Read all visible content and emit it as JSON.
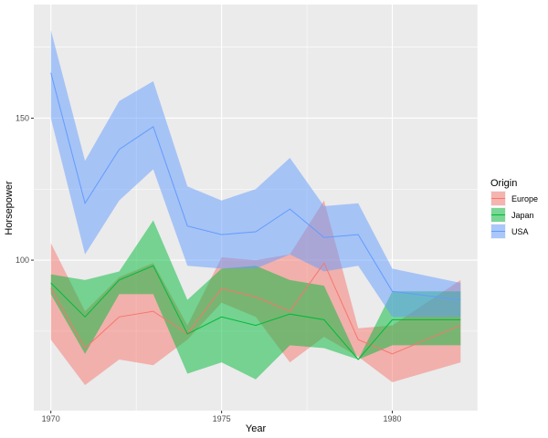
{
  "chart_data": {
    "type": "area",
    "xlabel": "Year",
    "ylabel": "Horsepower",
    "x": [
      1970,
      1971,
      1972,
      1973,
      1974,
      1975,
      1976,
      1977,
      1978,
      1979,
      1980,
      1982
    ],
    "x_ticks": [
      "1970",
      "1975",
      "1980"
    ],
    "y_ticks": [
      "100",
      "150"
    ],
    "xlim": [
      1969.5,
      1982.5
    ],
    "ylim": [
      47,
      190
    ],
    "grid": true,
    "legend_position": "right",
    "legend_title": "Origin",
    "series": [
      {
        "name": "Europe",
        "color": "#F8766D",
        "mean": [
          90,
          69,
          80,
          82,
          74,
          90,
          87,
          82,
          99,
          72,
          67,
          77
        ],
        "lower": [
          72,
          56,
          65,
          63,
          72,
          85,
          80,
          64,
          73,
          66,
          57,
          64
        ],
        "upper": [
          106,
          82,
          94,
          99,
          77,
          101,
          100,
          102,
          121,
          76,
          77,
          93
        ]
      },
      {
        "name": "Japan",
        "color": "#00BA38",
        "mean": [
          92,
          80,
          93,
          98,
          74,
          80,
          77,
          81,
          79,
          65,
          79,
          79
        ],
        "lower": [
          88,
          67,
          88,
          88,
          60,
          64,
          58,
          70,
          69,
          65,
          70,
          70
        ],
        "upper": [
          95,
          93,
          96,
          114,
          86,
          97,
          98,
          93,
          91,
          65,
          89,
          89
        ]
      },
      {
        "name": "USA",
        "color": "#619CFF",
        "mean": [
          166,
          120,
          139,
          147,
          112,
          109,
          110,
          118,
          108,
          109,
          89,
          86
        ],
        "lower": [
          150,
          102,
          121,
          132,
          98,
          97,
          97,
          102,
          96,
          98,
          80,
          80
        ],
        "upper": [
          181,
          135,
          156,
          163,
          126,
          121,
          125,
          136,
          119,
          120,
          97,
          92
        ]
      }
    ]
  }
}
